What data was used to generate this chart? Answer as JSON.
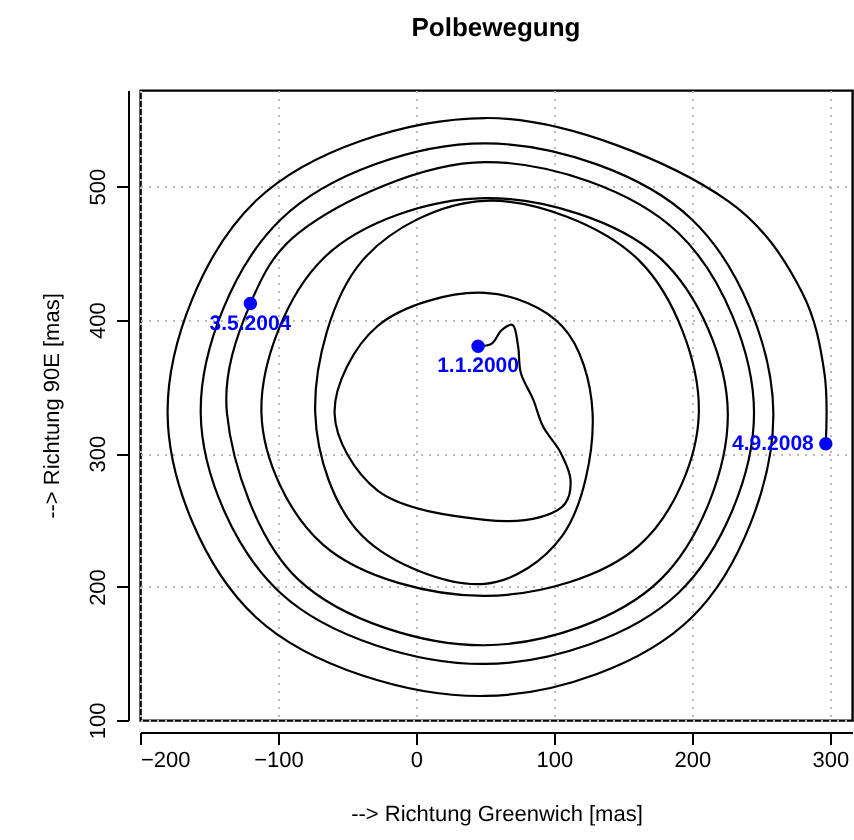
{
  "chart_data": {
    "type": "line",
    "title": "Polbewegung",
    "xlabel": "--> Richtung Greenwich [mas]",
    "ylabel": "--> Richtung 90E [mas]",
    "xlim": [
      -200,
      316
    ],
    "ylim": [
      100,
      572
    ],
    "xticks": [
      -200,
      -100,
      0,
      100,
      200,
      300
    ],
    "yticks": [
      100,
      200,
      300,
      400,
      500
    ],
    "grid": true,
    "series": [
      {
        "color": "#000000",
        "marker": "none",
        "line_style": "solid",
        "x": [
          45,
          55,
          62,
          70,
          74,
          76,
          85,
          92,
          105,
          112,
          108,
          90,
          50,
          -28,
          -59,
          -28,
          50,
          106,
          128,
          106,
          50,
          -39,
          -73,
          -39,
          50,
          162,
          205,
          162,
          50,
          -67,
          -112,
          -67,
          50,
          177,
          226,
          177,
          50,
          -85,
          -137,
          -120,
          -85,
          50,
          190,
          245,
          190,
          50,
          -98,
          -156,
          -98,
          50,
          200,
          259,
          200,
          50,
          -116,
          -180,
          -116,
          50,
          226,
          280,
          296,
          297
        ],
        "values": [
          380,
          382,
          392,
          396,
          380,
          360,
          340,
          320,
          300,
          280,
          262,
          252,
          250,
          272,
          330,
          395,
          420,
          395,
          330,
          238,
          202,
          238,
          330,
          444,
          489,
          444,
          330,
          231,
          193,
          231,
          330,
          446,
          491,
          446,
          330,
          205,
          156,
          205,
          330,
          412,
          465,
          518,
          465,
          330,
          195,
          142,
          195,
          330,
          475,
          532,
          475,
          330,
          177,
          118,
          177,
          330,
          489,
          551,
          489,
          420,
          360,
          307
        ]
      },
      {
        "type": "scatter",
        "color": "#0000ff",
        "marker": "circle",
        "x": [
          45,
          -120,
          297
        ],
        "values": [
          380,
          412,
          307
        ]
      }
    ],
    "annotations": [
      {
        "text": "1.1.2000",
        "x": 45,
        "y": 380
      },
      {
        "text": "3.5.2004",
        "x": -120,
        "y": 412
      },
      {
        "text": "4.9.2008",
        "x": 297,
        "y": 307
      }
    ]
  }
}
